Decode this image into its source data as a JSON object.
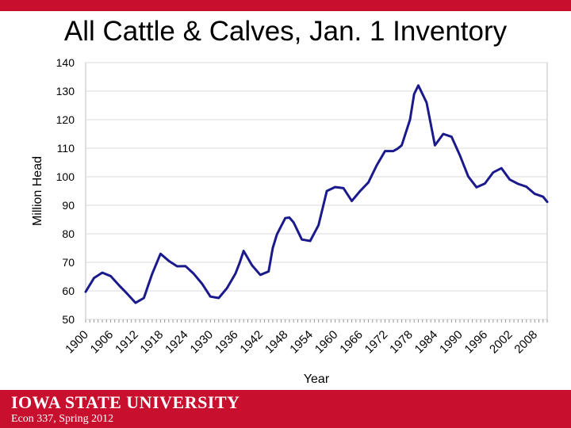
{
  "slide": {
    "title": "All Cattle & Calves, Jan. 1 Inventory",
    "university": "IOWA STATE UNIVERSITY",
    "course": "Econ 337, Spring 2012"
  },
  "colors": {
    "brand_red": "#c8102e",
    "line": "#1a1a8c",
    "grid": "#d9d9d9"
  },
  "chart_data": {
    "type": "line",
    "title": "",
    "xlabel": "Year",
    "ylabel": "Million Head",
    "ylim": [
      50,
      140
    ],
    "yticks": [
      50,
      60,
      70,
      80,
      90,
      100,
      110,
      120,
      130,
      140
    ],
    "xlim": [
      1900,
      2011
    ],
    "xticks": [
      "1900",
      "1906",
      "1912",
      "1918",
      "1924",
      "1930",
      "1936",
      "1942",
      "1948",
      "1954",
      "1960",
      "1966",
      "1972",
      "1978",
      "1984",
      "1990",
      "1996",
      "2002",
      "2008"
    ],
    "grid": "horizontal",
    "series": [
      {
        "x": [
          1900,
          1902,
          1904,
          1906,
          1908,
          1910,
          1912,
          1914,
          1916,
          1918,
          1920,
          1922,
          1924,
          1926,
          1928,
          1930,
          1932,
          1934,
          1936,
          1937,
          1938,
          1940,
          1942,
          1944,
          1945,
          1946,
          1948,
          1949,
          1950,
          1952,
          1954,
          1956,
          1958,
          1960,
          1962,
          1964,
          1966,
          1968,
          1970,
          1972,
          1974,
          1975,
          1976,
          1978,
          1979,
          1980,
          1982,
          1984,
          1986,
          1988,
          1990,
          1992,
          1994,
          1996,
          1998,
          2000,
          2002,
          2004,
          2006,
          2008,
          2010,
          2011
        ],
        "y": [
          59.7,
          64.5,
          66.4,
          65.2,
          62,
          59,
          55.8,
          57.5,
          66,
          73,
          70.5,
          68.6,
          68.7,
          66,
          62.5,
          58,
          57.5,
          61,
          66,
          69.7,
          74,
          69,
          65.6,
          66.8,
          75,
          79.8,
          85.5,
          85.7,
          84,
          78,
          77.5,
          83,
          95,
          96.4,
          96,
          91.5,
          95,
          98,
          104,
          109,
          109,
          109.8,
          111,
          120,
          129,
          132,
          126,
          111,
          115,
          114,
          107.5,
          100.1,
          96.3,
          97.6,
          101.5,
          103,
          99,
          97.5,
          96.5,
          94,
          93,
          91.2
        ]
      }
    ]
  }
}
